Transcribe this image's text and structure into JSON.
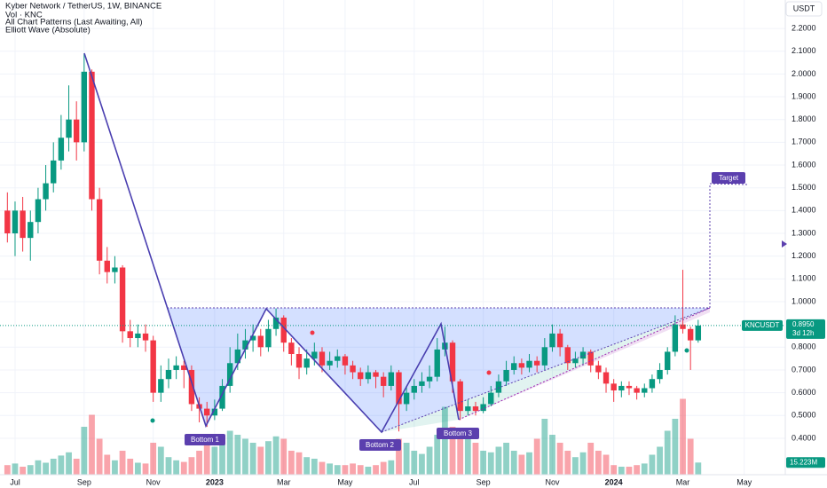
{
  "header": {
    "title": "Kyber Network / TetherUS, 1W, BINANCE",
    "volume": "Vol · KNC",
    "patterns": "All Chart Patterns (Last Awaiting, All)",
    "wave": "Elliott Wave (Absolute)"
  },
  "chart_data": {
    "type": "candlestick",
    "currency": "USDT",
    "symbol": "KNCUSDT",
    "close_label": "0.8950",
    "countdown": "3d 12h",
    "volume_label": "15.223M",
    "annotations": [
      "Bottom 1",
      "Bottom 2",
      "Bottom 3"
    ],
    "target_label": "Target",
    "colors": {
      "up": "#089981",
      "down": "#f23645"
    },
    "grid": true,
    "ylim": [
      0.24,
      2.325
    ],
    "yticks": [
      {
        "value": 2.2,
        "label": "2.2000"
      },
      {
        "value": 2.1,
        "label": "2.1000"
      },
      {
        "value": 2.0,
        "label": "2.0000"
      },
      {
        "value": 1.9,
        "label": "1.9000"
      },
      {
        "value": 1.8,
        "label": "1.8000"
      },
      {
        "value": 1.7,
        "label": "1.7000"
      },
      {
        "value": 1.6,
        "label": "1.6000"
      },
      {
        "value": 1.5,
        "label": "1.5000"
      },
      {
        "value": 1.4,
        "label": "1.4000"
      },
      {
        "value": 1.3,
        "label": "1.3000"
      },
      {
        "value": 1.2,
        "label": "1.2000"
      },
      {
        "value": 1.1,
        "label": "1.1000"
      },
      {
        "value": 1.0,
        "label": "1.0000"
      },
      {
        "value": 0.8,
        "label": "0.8000"
      },
      {
        "value": 0.7,
        "label": "0.7000"
      },
      {
        "value": 0.6,
        "label": "0.6000"
      },
      {
        "value": 0.5,
        "label": "0.5000"
      },
      {
        "value": 0.4,
        "label": "0.4000"
      }
    ],
    "volume_lim": [
      0,
      100
    ],
    "categories": [
      null,
      "Jul",
      null,
      null,
      null,
      null,
      null,
      null,
      null,
      null,
      "Sep",
      null,
      null,
      null,
      null,
      null,
      null,
      null,
      null,
      "Nov",
      null,
      null,
      null,
      null,
      null,
      null,
      null,
      "2023",
      null,
      null,
      null,
      null,
      null,
      null,
      null,
      null,
      "Mar",
      null,
      null,
      null,
      null,
      null,
      null,
      null,
      "May",
      null,
      null,
      null,
      null,
      null,
      null,
      null,
      null,
      "Jul",
      null,
      null,
      null,
      null,
      null,
      null,
      null,
      null,
      "Sep",
      null,
      null,
      null,
      null,
      null,
      null,
      null,
      null,
      "Nov",
      null,
      null,
      null,
      null,
      null,
      null,
      null,
      "2024",
      null,
      null,
      null,
      null,
      null,
      null,
      null,
      null,
      "Mar",
      null,
      null,
      null,
      null,
      null,
      null,
      null,
      "May",
      null,
      null,
      null,
      null
    ],
    "open": [
      1.4,
      1.3,
      1.4,
      1.28,
      1.35,
      1.45,
      1.52,
      1.62,
      1.72,
      1.8,
      1.7,
      2.01,
      1.45,
      1.18,
      1.13,
      1.15,
      0.87,
      0.84,
      0.86,
      0.83,
      0.6,
      0.66,
      0.7,
      0.72,
      0.7,
      0.55,
      0.53,
      0.5,
      0.53,
      0.63,
      0.73,
      0.79,
      0.83,
      0.85,
      0.8,
      0.88,
      0.93,
      0.82,
      0.77,
      0.71,
      0.75,
      0.78,
      0.72,
      0.74,
      0.76,
      0.72,
      0.69,
      0.66,
      0.69,
      0.67,
      0.63,
      0.69,
      0.55,
      0.6,
      0.63,
      0.65,
      0.67,
      0.79,
      0.82,
      0.65,
      0.52,
      0.54,
      0.52,
      0.55,
      0.6,
      0.65,
      0.7,
      0.73,
      0.71,
      0.74,
      0.72,
      0.8,
      0.86,
      0.8,
      0.73,
      0.75,
      0.78,
      0.72,
      0.69,
      0.64,
      0.61,
      0.63,
      0.62,
      0.6,
      0.62,
      0.66,
      0.7,
      0.78,
      0.9,
      0.88,
      0.83,
      null,
      null,
      null,
      null,
      null,
      null,
      null,
      null,
      null,
      null
    ],
    "high": [
      1.48,
      1.44,
      1.46,
      1.4,
      1.5,
      1.6,
      1.7,
      1.82,
      1.95,
      1.88,
      2.09,
      2.02,
      1.5,
      1.24,
      1.2,
      1.16,
      0.92,
      0.9,
      0.9,
      0.85,
      0.72,
      0.75,
      0.76,
      0.74,
      0.72,
      0.58,
      0.56,
      0.57,
      0.66,
      0.8,
      0.86,
      0.88,
      0.9,
      0.88,
      0.92,
      0.97,
      0.94,
      0.84,
      0.8,
      0.79,
      0.82,
      0.8,
      0.78,
      0.79,
      0.77,
      0.74,
      0.71,
      0.72,
      0.7,
      0.69,
      0.72,
      0.7,
      0.63,
      0.66,
      0.69,
      0.72,
      0.84,
      0.89,
      0.83,
      0.66,
      0.57,
      0.56,
      0.58,
      0.63,
      0.68,
      0.74,
      0.76,
      0.75,
      0.77,
      0.76,
      0.84,
      0.9,
      0.88,
      0.81,
      0.78,
      0.8,
      0.79,
      0.74,
      0.71,
      0.66,
      0.65,
      0.65,
      0.63,
      0.64,
      0.68,
      0.73,
      0.8,
      0.94,
      1.14,
      0.89,
      0.92,
      null,
      null,
      null,
      null,
      null,
      null,
      null,
      null,
      null,
      null
    ],
    "low": [
      1.26,
      1.2,
      1.22,
      1.18,
      1.3,
      1.4,
      1.48,
      1.58,
      1.66,
      1.62,
      1.66,
      1.4,
      1.12,
      1.08,
      1.08,
      0.82,
      0.8,
      0.8,
      0.78,
      0.56,
      0.56,
      0.62,
      0.66,
      0.62,
      0.52,
      0.47,
      0.45,
      0.48,
      0.52,
      0.6,
      0.7,
      0.75,
      0.78,
      0.76,
      0.78,
      0.85,
      0.78,
      0.72,
      0.66,
      0.68,
      0.72,
      0.69,
      0.7,
      0.71,
      0.68,
      0.66,
      0.63,
      0.64,
      0.62,
      0.58,
      0.61,
      0.43,
      0.52,
      0.57,
      0.6,
      0.62,
      0.65,
      0.76,
      0.6,
      0.48,
      0.5,
      0.5,
      0.51,
      0.54,
      0.58,
      0.63,
      0.68,
      0.68,
      0.69,
      0.69,
      0.7,
      0.78,
      0.76,
      0.7,
      0.71,
      0.72,
      0.69,
      0.66,
      0.6,
      0.56,
      0.58,
      0.59,
      0.57,
      0.58,
      0.6,
      0.64,
      0.68,
      0.76,
      0.86,
      0.7,
      0.82,
      null,
      null,
      null,
      null,
      null,
      null,
      null,
      null,
      null,
      null
    ],
    "close": [
      1.3,
      1.4,
      1.28,
      1.35,
      1.45,
      1.52,
      1.62,
      1.72,
      1.8,
      1.7,
      2.01,
      1.45,
      1.18,
      1.13,
      1.15,
      0.87,
      0.84,
      0.86,
      0.83,
      0.6,
      0.66,
      0.7,
      0.72,
      0.7,
      0.55,
      0.53,
      0.5,
      0.53,
      0.63,
      0.73,
      0.79,
      0.83,
      0.85,
      0.8,
      0.88,
      0.93,
      0.82,
      0.77,
      0.71,
      0.75,
      0.78,
      0.72,
      0.74,
      0.76,
      0.72,
      0.69,
      0.66,
      0.69,
      0.67,
      0.63,
      0.69,
      0.55,
      0.6,
      0.63,
      0.65,
      0.67,
      0.79,
      0.82,
      0.65,
      0.52,
      0.54,
      0.52,
      0.55,
      0.6,
      0.65,
      0.7,
      0.73,
      0.71,
      0.74,
      0.72,
      0.8,
      0.86,
      0.8,
      0.73,
      0.75,
      0.78,
      0.72,
      0.69,
      0.64,
      0.61,
      0.63,
      0.62,
      0.6,
      0.62,
      0.66,
      0.7,
      0.78,
      0.9,
      0.88,
      0.83,
      0.895,
      null,
      null,
      null,
      null,
      null,
      null,
      null,
      null,
      null,
      null
    ],
    "volume": [
      12,
      14,
      10,
      12,
      18,
      15,
      20,
      24,
      28,
      20,
      60,
      75,
      45,
      25,
      18,
      30,
      20,
      15,
      14,
      40,
      35,
      22,
      18,
      16,
      22,
      30,
      40,
      35,
      48,
      55,
      50,
      45,
      40,
      35,
      42,
      48,
      45,
      30,
      28,
      22,
      20,
      16,
      14,
      12,
      12,
      14,
      12,
      10,
      12,
      16,
      18,
      45,
      40,
      30,
      26,
      35,
      50,
      85,
      60,
      55,
      45,
      40,
      30,
      28,
      35,
      40,
      30,
      25,
      28,
      45,
      70,
      50,
      40,
      30,
      22,
      28,
      40,
      30,
      25,
      12,
      10,
      10,
      12,
      14,
      25,
      35,
      55,
      70,
      95,
      45,
      15.223,
      null,
      null,
      null,
      null,
      null,
      null,
      null,
      null,
      null,
      null
    ]
  }
}
